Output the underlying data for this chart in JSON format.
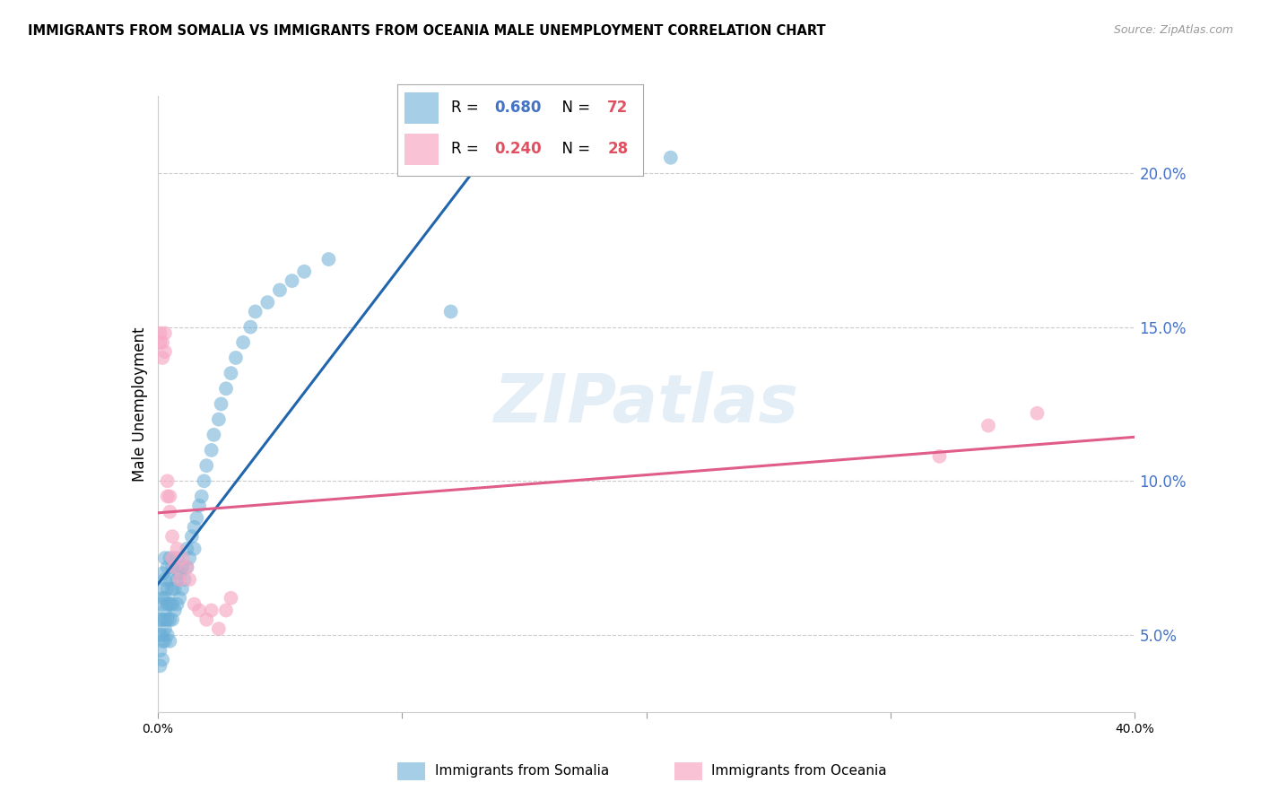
{
  "title": "IMMIGRANTS FROM SOMALIA VS IMMIGRANTS FROM OCEANIA MALE UNEMPLOYMENT CORRELATION CHART",
  "source": "Source: ZipAtlas.com",
  "ylabel": "Male Unemployment",
  "right_yticks": [
    0.05,
    0.1,
    0.15,
    0.2
  ],
  "right_yticklabels": [
    "5.0%",
    "10.0%",
    "15.0%",
    "20.0%"
  ],
  "watermark": "ZIPatlas",
  "somalia_color": "#6baed6",
  "oceania_color": "#f7a8c4",
  "xmin": 0.0,
  "xmax": 0.4,
  "ymin": 0.025,
  "ymax": 0.225,
  "blue_line_color": "#2166ac",
  "pink_line_color": "#e05c8a",
  "grid_color": "#cccccc",
  "legend_r1": "0.680",
  "legend_n1": "72",
  "legend_r2": "0.240",
  "legend_n2": "28",
  "legend_color_r1": "#4472c4",
  "legend_color_n1": "#e05060",
  "legend_color_r2": "#e05060",
  "legend_color_n2": "#e05060",
  "somalia_x": [
    0.001,
    0.001,
    0.001,
    0.001,
    0.002,
    0.002,
    0.002,
    0.002,
    0.002,
    0.002,
    0.002,
    0.002,
    0.003,
    0.003,
    0.003,
    0.003,
    0.003,
    0.003,
    0.003,
    0.004,
    0.004,
    0.004,
    0.004,
    0.004,
    0.005,
    0.005,
    0.005,
    0.005,
    0.005,
    0.006,
    0.006,
    0.006,
    0.006,
    0.007,
    0.007,
    0.007,
    0.008,
    0.008,
    0.008,
    0.009,
    0.009,
    0.01,
    0.01,
    0.011,
    0.012,
    0.012,
    0.013,
    0.014,
    0.015,
    0.015,
    0.016,
    0.017,
    0.018,
    0.019,
    0.02,
    0.022,
    0.023,
    0.025,
    0.026,
    0.028,
    0.03,
    0.032,
    0.035,
    0.038,
    0.04,
    0.045,
    0.05,
    0.055,
    0.06,
    0.07,
    0.12,
    0.21
  ],
  "somalia_y": [
    0.04,
    0.045,
    0.05,
    0.055,
    0.042,
    0.048,
    0.05,
    0.055,
    0.06,
    0.062,
    0.065,
    0.07,
    0.048,
    0.052,
    0.055,
    0.058,
    0.062,
    0.068,
    0.075,
    0.05,
    0.055,
    0.06,
    0.065,
    0.072,
    0.048,
    0.055,
    0.06,
    0.068,
    0.075,
    0.055,
    0.06,
    0.065,
    0.072,
    0.058,
    0.065,
    0.072,
    0.06,
    0.068,
    0.075,
    0.062,
    0.07,
    0.065,
    0.072,
    0.068,
    0.072,
    0.078,
    0.075,
    0.082,
    0.078,
    0.085,
    0.088,
    0.092,
    0.095,
    0.1,
    0.105,
    0.11,
    0.115,
    0.12,
    0.125,
    0.13,
    0.135,
    0.14,
    0.145,
    0.15,
    0.155,
    0.158,
    0.162,
    0.165,
    0.168,
    0.172,
    0.155,
    0.205
  ],
  "oceania_x": [
    0.001,
    0.001,
    0.002,
    0.002,
    0.003,
    0.003,
    0.004,
    0.004,
    0.005,
    0.005,
    0.006,
    0.006,
    0.007,
    0.008,
    0.009,
    0.01,
    0.012,
    0.013,
    0.015,
    0.017,
    0.02,
    0.022,
    0.025,
    0.028,
    0.03,
    0.32,
    0.34,
    0.36
  ],
  "oceania_y": [
    0.145,
    0.148,
    0.14,
    0.145,
    0.142,
    0.148,
    0.095,
    0.1,
    0.09,
    0.095,
    0.075,
    0.082,
    0.072,
    0.078,
    0.068,
    0.075,
    0.072,
    0.068,
    0.06,
    0.058,
    0.055,
    0.058,
    0.052,
    0.058,
    0.062,
    0.108,
    0.118,
    0.122
  ]
}
